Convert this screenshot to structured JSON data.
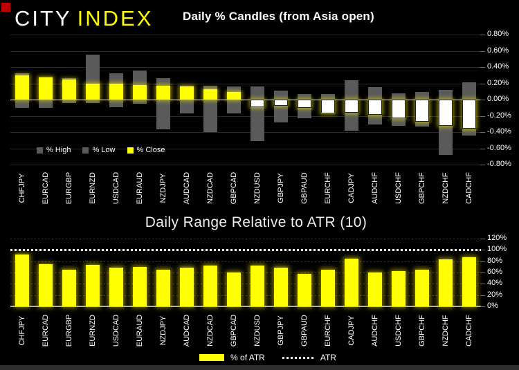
{
  "header": {
    "logo_city": "CITY",
    "logo_index": "INDEX",
    "logo_city_color": "#ffffff",
    "logo_index_color": "#ffff00",
    "red_marker_color": "#c00000"
  },
  "chart_data": [
    {
      "type": "bar",
      "subtype": "floating-range-candles",
      "title": "Daily % Candles (from Asia open)",
      "categories": [
        "CHFJPY",
        "EURCAD",
        "EURGBP",
        "EURNZD",
        "USDCAD",
        "EURAUD",
        "NZDJPY",
        "AUDCAD",
        "NZDCAD",
        "GBPCAD",
        "NZDUSD",
        "GBPJPY",
        "GBPAUD",
        "EURCHF",
        "CADJPY",
        "AUDCHF",
        "USDCHF",
        "GBPCHF",
        "NZDCHF",
        "CADCHF"
      ],
      "series": [
        {
          "name": "% High",
          "color": "#5a5a5a",
          "values": [
            0.32,
            0.28,
            0.26,
            0.55,
            0.32,
            0.36,
            0.26,
            0.17,
            0.17,
            0.16,
            0.16,
            0.11,
            0.07,
            0.07,
            0.24,
            0.15,
            0.08,
            0.09,
            0.12,
            0.21
          ]
        },
        {
          "name": "% Low",
          "color": "#5a5a5a",
          "values": [
            -0.1,
            -0.1,
            -0.04,
            -0.04,
            -0.09,
            -0.05,
            -0.37,
            -0.17,
            -0.4,
            -0.17,
            -0.51,
            -0.28,
            -0.23,
            -0.18,
            -0.38,
            -0.31,
            -0.32,
            -0.33,
            -0.68,
            -0.44
          ]
        },
        {
          "name": "% Close",
          "color": "#ffff00",
          "negative_fill": "#ffffff",
          "values": [
            0.3,
            0.27,
            0.25,
            0.2,
            0.2,
            0.18,
            0.17,
            0.16,
            0.13,
            0.09,
            -0.09,
            -0.08,
            -0.1,
            -0.17,
            -0.16,
            -0.19,
            -0.23,
            -0.27,
            -0.32,
            -0.36
          ]
        }
      ],
      "ylim": [
        -0.8,
        0.8
      ],
      "yticks": [
        {
          "label": "0.80%",
          "value": 0.8
        },
        {
          "label": "0.60%",
          "value": 0.6
        },
        {
          "label": "0.40%",
          "value": 0.4
        },
        {
          "label": "0.20%",
          "value": 0.2
        },
        {
          "label": "0.00%",
          "value": 0.0
        },
        {
          "label": "-0.20%",
          "value": -0.2
        },
        {
          "label": "-0.40%",
          "value": -0.4
        },
        {
          "label": "-0.60%",
          "value": -0.6
        },
        {
          "label": "-0.80%",
          "value": -0.8
        }
      ],
      "grid": true,
      "zero_line_color": "#ffffff",
      "legend_position": "bottom-left-inside"
    },
    {
      "type": "bar",
      "title": "Daily Range Relative to ATR (10)",
      "categories": [
        "CHFJPY",
        "EURCAD",
        "EURGBP",
        "EURNZD",
        "USDCAD",
        "EURAUD",
        "NZDJPY",
        "AUDCAD",
        "NZDCAD",
        "GBPCAD",
        "NZDUSD",
        "GBPJPY",
        "GBPAUD",
        "EURCHF",
        "CADJPY",
        "AUDCHF",
        "USDCHF",
        "GBPCHF",
        "NZDCHF",
        "CADCHF"
      ],
      "series": [
        {
          "name": "% of ATR",
          "color": "#ffff00",
          "values": [
            92,
            75,
            65,
            74,
            69,
            70,
            65,
            68,
            72,
            60,
            72,
            68,
            58,
            65,
            85,
            60,
            63,
            65,
            83,
            87
          ]
        }
      ],
      "reference_line": {
        "name": "ATR",
        "value": 100,
        "style": "dotted",
        "color": "#ffffff"
      },
      "ylim": [
        0,
        120
      ],
      "yticks": [
        {
          "label": "120%",
          "value": 120
        },
        {
          "label": "100%",
          "value": 100
        },
        {
          "label": "80%",
          "value": 80
        },
        {
          "label": "60%",
          "value": 60
        },
        {
          "label": "40%",
          "value": 40
        },
        {
          "label": "20%",
          "value": 20
        },
        {
          "label": "0%",
          "value": 0
        }
      ],
      "grid": true,
      "legend_position": "bottom-center"
    }
  ]
}
